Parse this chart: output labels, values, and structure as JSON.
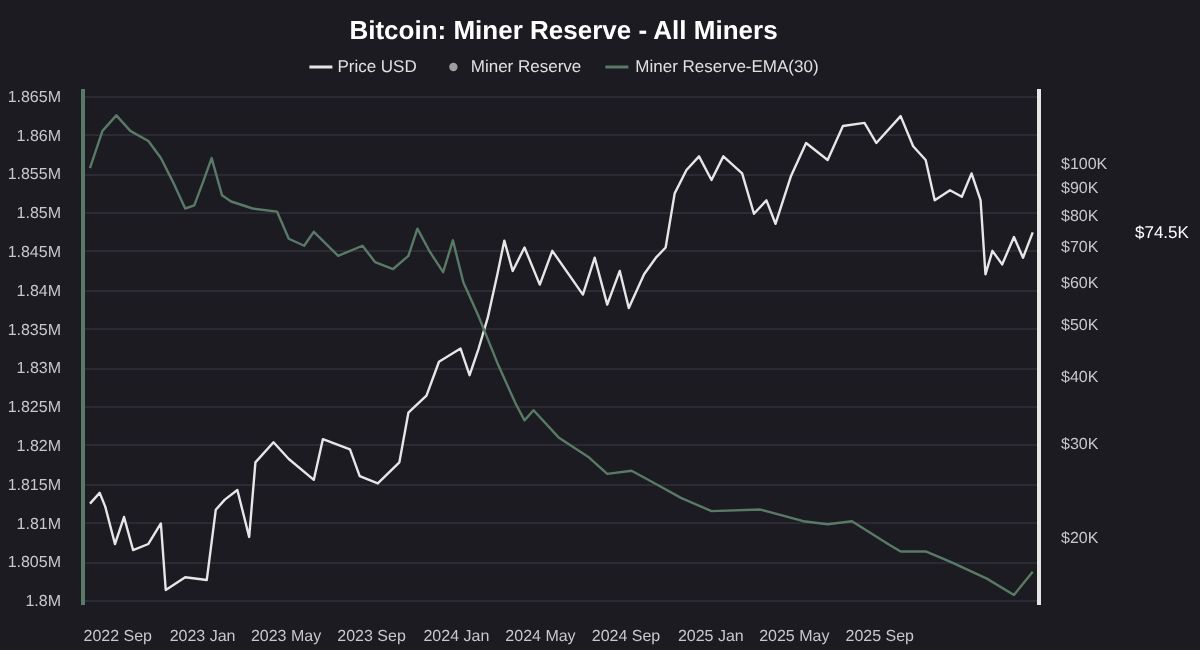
{
  "chart_data": {
    "type": "line",
    "title": "Bitcoin: Miner Reserve - All Miners",
    "legend": "top",
    "grid": "y",
    "marker": "none",
    "line_style": "solid",
    "xlim": [
      "2022-07-13",
      "2026-04-18"
    ],
    "xticks": [
      {
        "value": "2022-09-01",
        "label": "2022 Sep"
      },
      {
        "value": "2023-01-01",
        "label": "2023 Jan"
      },
      {
        "value": "2023-05-01",
        "label": "2023 May"
      },
      {
        "value": "2023-09-01",
        "label": "2023 Sep"
      },
      {
        "value": "2024-01-01",
        "label": "2024 Jan"
      },
      {
        "value": "2024-05-01",
        "label": "2024 May"
      },
      {
        "value": "2024-09-01",
        "label": "2024 Sep"
      },
      {
        "value": "2025-01-01",
        "label": "2025 Jan"
      },
      {
        "value": "2025-05-01",
        "label": "2025 May"
      },
      {
        "value": "2025-09-01",
        "label": "2025 Sep"
      }
    ],
    "ylim": [
      1799500,
      1866000
    ],
    "yticks": [
      {
        "value": 1800000,
        "label": "1.8M"
      },
      {
        "value": 1805000,
        "label": "1.805M"
      },
      {
        "value": 1810000,
        "label": "1.81M"
      },
      {
        "value": 1815000,
        "label": "1.815M"
      },
      {
        "value": 1820000,
        "label": "1.82M"
      },
      {
        "value": 1825000,
        "label": "1.825M"
      },
      {
        "value": 1830000,
        "label": "1.83M"
      },
      {
        "value": 1835000,
        "label": "1.835M"
      },
      {
        "value": 1840000,
        "label": "1.84M"
      },
      {
        "value": 1845000,
        "label": "1.845M"
      },
      {
        "value": 1850000,
        "label": "1.85M"
      },
      {
        "value": 1855000,
        "label": "1.855M"
      },
      {
        "value": 1860000,
        "label": "1.86M"
      },
      {
        "value": 1865000,
        "label": "1.865M"
      }
    ],
    "log": "y2",
    "y2lim": [
      15000,
      138000
    ],
    "y2ticks": [
      {
        "value": 20000,
        "label": "$20K"
      },
      {
        "value": 30000,
        "label": "$30K"
      },
      {
        "value": 40000,
        "label": "$40K"
      },
      {
        "value": 50000,
        "label": "$50K"
      },
      {
        "value": 60000,
        "label": "$60K"
      },
      {
        "value": 70000,
        "label": "$70K"
      },
      {
        "value": 80000,
        "label": "$80K"
      },
      {
        "value": 90000,
        "label": "$90K"
      },
      {
        "value": 100000,
        "label": "$100K"
      }
    ],
    "annotations": [
      "$74.5K"
    ],
    "series": [
      {
        "name": "Price USD",
        "color": "#e6e6e6",
        "axis": "y2",
        "x": [
          "2022-07-23",
          "2022-08-06",
          "2022-08-14",
          "2022-08-28",
          "2022-09-10",
          "2022-09-23",
          "2022-10-15",
          "2022-11-02",
          "2022-11-09",
          "2022-12-07",
          "2023-01-07",
          "2023-01-20",
          "2023-02-02",
          "2023-02-20",
          "2023-03-09",
          "2023-03-18",
          "2023-04-13",
          "2023-05-05",
          "2023-06-10",
          "2023-06-23",
          "2023-08-01",
          "2023-08-15",
          "2023-09-10",
          "2023-10-11",
          "2023-10-24",
          "2023-11-19",
          "2023-12-07",
          "2024-01-07",
          "2024-01-20",
          "2024-02-02",
          "2024-02-15",
          "2024-02-29",
          "2024-03-10",
          "2024-03-22",
          "2024-04-08",
          "2024-04-30",
          "2024-05-18",
          "2024-07-01",
          "2024-07-18",
          "2024-08-05",
          "2024-08-23",
          "2024-09-05",
          "2024-09-27",
          "2024-10-14",
          "2024-10-28",
          "2024-11-10",
          "2024-11-27",
          "2024-12-15",
          "2025-01-02",
          "2025-01-19",
          "2025-02-15",
          "2025-03-04",
          "2025-03-22",
          "2025-04-04",
          "2025-04-26",
          "2025-05-18",
          "2025-06-18",
          "2025-07-10",
          "2025-08-10",
          "2025-08-27",
          "2025-10-01",
          "2025-10-19",
          "2025-11-06",
          "2025-11-19",
          "2025-12-11",
          "2025-12-28",
          "2026-01-11",
          "2026-01-24",
          "2026-01-31",
          "2026-02-10",
          "2026-02-24",
          "2026-03-13",
          "2026-03-26",
          "2026-04-09"
        ],
        "values": [
          23200,
          24300,
          22900,
          19500,
          21900,
          19000,
          19500,
          21300,
          16000,
          16900,
          16700,
          22600,
          23600,
          24600,
          20100,
          27700,
          30200,
          28100,
          25700,
          30600,
          29300,
          26100,
          25300,
          27700,
          34300,
          36900,
          42700,
          45200,
          40300,
          45200,
          51500,
          62200,
          71900,
          63100,
          69800,
          59500,
          68800,
          57000,
          66800,
          54600,
          63100,
          53800,
          62200,
          66800,
          69800,
          88100,
          97400,
          103300,
          93300,
          103300,
          96000,
          80700,
          85500,
          77300,
          94700,
          109400,
          101700,
          117700,
          119300,
          109400,
          122800,
          107900,
          101700,
          85500,
          89300,
          86800,
          96000,
          85500,
          62200,
          68800,
          64900,
          73000,
          66800,
          74500
        ]
      },
      {
        "name": "Miner Reserve",
        "color": "#9e9e9e",
        "type": "scatter"
      },
      {
        "name": "Miner Reserve-EMA(30)",
        "color": "#587a66",
        "x": [
          "2022-07-23",
          "2022-08-10",
          "2022-08-30",
          "2022-09-19",
          "2022-10-15",
          "2022-11-02",
          "2022-11-19",
          "2022-12-07",
          "2022-12-20",
          "2023-01-02",
          "2023-01-14",
          "2023-01-29",
          "2023-02-11",
          "2023-03-14",
          "2023-04-18",
          "2023-05-05",
          "2023-05-27",
          "2023-06-10",
          "2023-07-15",
          "2023-08-19",
          "2023-09-06",
          "2023-10-02",
          "2023-10-24",
          "2023-11-06",
          "2023-11-24",
          "2023-12-13",
          "2023-12-27",
          "2024-01-11",
          "2024-02-02",
          "2024-02-29",
          "2024-03-26",
          "2024-04-08",
          "2024-04-21",
          "2024-05-27",
          "2024-07-10",
          "2024-08-05",
          "2024-09-09",
          "2024-10-14",
          "2024-11-19",
          "2025-01-02",
          "2025-03-13",
          "2025-05-14",
          "2025-06-18",
          "2025-07-23",
          "2025-09-14",
          "2025-10-01",
          "2025-11-06",
          "2025-12-11",
          "2026-02-02",
          "2026-03-13",
          "2026-04-09"
        ],
        "values": [
          1855800,
          1860600,
          1862600,
          1860600,
          1859300,
          1857100,
          1854100,
          1850600,
          1851000,
          1854100,
          1857100,
          1852300,
          1851500,
          1850600,
          1850200,
          1846700,
          1845800,
          1847600,
          1844500,
          1845800,
          1843700,
          1842800,
          1844500,
          1848000,
          1845000,
          1842400,
          1846500,
          1841100,
          1836700,
          1830700,
          1825500,
          1823300,
          1824600,
          1821100,
          1818500,
          1816400,
          1816800,
          1815100,
          1813300,
          1811600,
          1811800,
          1810300,
          1809900,
          1810300,
          1807300,
          1806400,
          1806400,
          1805100,
          1802900,
          1800800,
          1803800
        ]
      }
    ]
  }
}
